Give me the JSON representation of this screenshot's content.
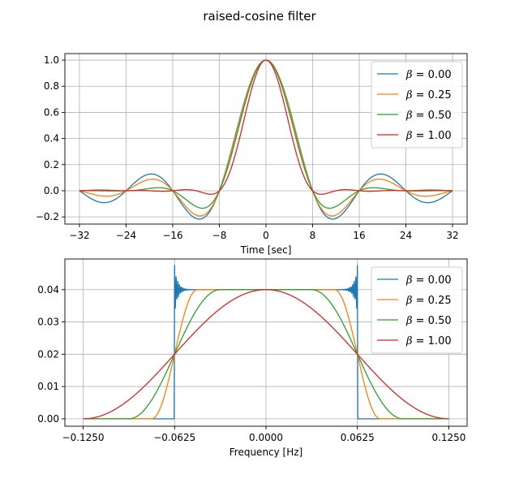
{
  "figure_title": "raised-cosine filter",
  "chart_data": [
    {
      "type": "line",
      "name": "impulse-response",
      "xlabel": "Time [sec]",
      "ylabel": "",
      "xlim": [
        -34.5,
        34.5
      ],
      "ylim": [
        -0.255,
        1.05
      ],
      "xticks": [
        -32,
        -24,
        -16,
        -8,
        0,
        8,
        16,
        24,
        32
      ],
      "xtick_labels": [
        "−32",
        "−24",
        "−16",
        "−8",
        "0",
        "8",
        "16",
        "24",
        "32"
      ],
      "yticks": [
        -0.2,
        0.0,
        0.2,
        0.4,
        0.6,
        0.8,
        1.0
      ],
      "ytick_labels": [
        "−0.2",
        "0.0",
        "0.2",
        "0.4",
        "0.6",
        "0.8",
        "1.0"
      ],
      "grid": true,
      "legend_position": "upper-right",
      "model": {
        "function": "raised-cosine-impulse",
        "T": 8,
        "x_range": [
          -32,
          32
        ],
        "samples": 641
      },
      "series": [
        {
          "name": "0.00",
          "beta": 0.0,
          "color": "#1f77b4"
        },
        {
          "name": "0.25",
          "beta": 0.25,
          "color": "#ff7f0e"
        },
        {
          "name": "0.50",
          "beta": 0.5,
          "color": "#2ca02c"
        },
        {
          "name": "1.00",
          "beta": 1.0,
          "color": "#d62728"
        }
      ]
    },
    {
      "type": "line",
      "name": "frequency-response",
      "xlabel": "Frequency [Hz]",
      "ylabel": "",
      "xlim": [
        -0.1375,
        0.1375
      ],
      "ylim": [
        -0.0023,
        0.0495
      ],
      "xticks": [
        -0.125,
        -0.0625,
        0.0,
        0.0625,
        0.125
      ],
      "xtick_labels": [
        "−0.1250",
        "−0.0625",
        "0.0000",
        "0.0625",
        "0.1250"
      ],
      "yticks": [
        0.0,
        0.01,
        0.02,
        0.03,
        0.04
      ],
      "ytick_labels": [
        "0.00",
        "0.01",
        "0.02",
        "0.03",
        "0.04"
      ],
      "grid": true,
      "legend_position": "upper-right",
      "model": {
        "function": "raised-cosine-spectrum",
        "T": 8,
        "peak": 0.04,
        "x_range": [
          -0.125,
          0.125
        ],
        "samples": 1001,
        "gibbs_overshoot": 0.0075
      },
      "series": [
        {
          "name": "0.00",
          "beta": 0.0,
          "color": "#1f77b4"
        },
        {
          "name": "0.25",
          "beta": 0.25,
          "color": "#ff7f0e"
        },
        {
          "name": "0.50",
          "beta": 0.5,
          "color": "#2ca02c"
        },
        {
          "name": "1.00",
          "beta": 1.0,
          "color": "#d62728"
        }
      ]
    }
  ],
  "legend": {
    "symbol": "β",
    "separator": " = "
  }
}
